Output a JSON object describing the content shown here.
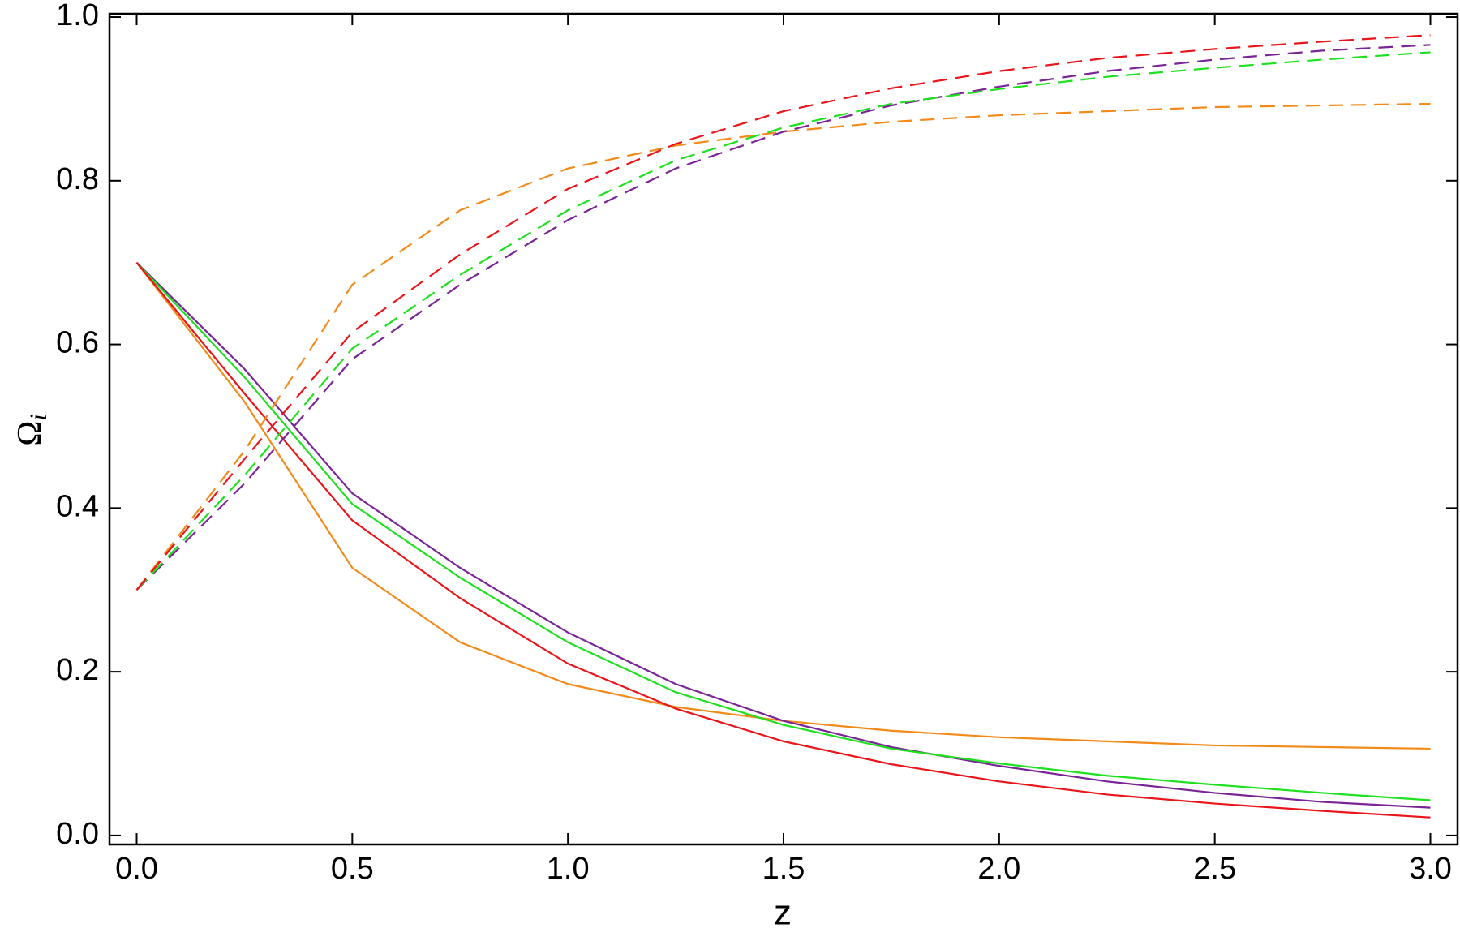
{
  "chart_data": {
    "type": "line",
    "xlabel": "z",
    "ylabel": "Ω",
    "ylabel_subscript": "i",
    "x": [
      0,
      0.25,
      0.5,
      0.75,
      1.0,
      1.25,
      1.5,
      1.75,
      2.0,
      2.25,
      2.5,
      2.75,
      3.0
    ],
    "series": [
      {
        "color": "#f28a1a",
        "dashed": false,
        "values": [
          0.7,
          0.53,
          0.327,
          0.236,
          0.185,
          0.157,
          0.14,
          0.128,
          0.12,
          0.115,
          0.11,
          0.108,
          0.106
        ]
      },
      {
        "color": "#7a2596",
        "dashed": false,
        "values": [
          0.7,
          0.57,
          0.418,
          0.327,
          0.248,
          0.185,
          0.14,
          0.108,
          0.085,
          0.066,
          0.052,
          0.041,
          0.034
        ]
      },
      {
        "color": "#1fe01f",
        "dashed": false,
        "values": [
          0.7,
          0.56,
          0.405,
          0.315,
          0.236,
          0.175,
          0.135,
          0.106,
          0.088,
          0.073,
          0.062,
          0.052,
          0.043
        ]
      },
      {
        "color": "#e8151b",
        "dashed": false,
        "values": [
          0.7,
          0.54,
          0.385,
          0.29,
          0.21,
          0.155,
          0.115,
          0.087,
          0.066,
          0.05,
          0.039,
          0.03,
          0.022
        ]
      },
      {
        "color": "#f28a1a",
        "dashed": true,
        "values": [
          0.3,
          0.47,
          0.673,
          0.764,
          0.815,
          0.843,
          0.86,
          0.872,
          0.88,
          0.885,
          0.89,
          0.892,
          0.894
        ]
      },
      {
        "color": "#7a2596",
        "dashed": true,
        "values": [
          0.3,
          0.43,
          0.582,
          0.673,
          0.752,
          0.815,
          0.86,
          0.892,
          0.915,
          0.934,
          0.948,
          0.959,
          0.966
        ]
      },
      {
        "color": "#1fe01f",
        "dashed": true,
        "values": [
          0.3,
          0.44,
          0.595,
          0.685,
          0.764,
          0.825,
          0.865,
          0.894,
          0.912,
          0.927,
          0.938,
          0.948,
          0.957
        ]
      },
      {
        "color": "#e8151b",
        "dashed": true,
        "values": [
          0.3,
          0.46,
          0.615,
          0.71,
          0.79,
          0.845,
          0.885,
          0.913,
          0.934,
          0.95,
          0.961,
          0.97,
          0.978
        ]
      }
    ],
    "xlim": [
      -0.063,
      3.063
    ],
    "ylim": [
      -0.011,
      1.004
    ],
    "xticks": [
      {
        "value": 0,
        "label": "0.0"
      },
      {
        "value": 0.5,
        "label": "0.5"
      },
      {
        "value": 1,
        "label": "1.0"
      },
      {
        "value": 1.5,
        "label": "1.5"
      },
      {
        "value": 2,
        "label": "2.0"
      },
      {
        "value": 2.5,
        "label": "2.5"
      },
      {
        "value": 3,
        "label": "3.0"
      }
    ],
    "yticks": [
      {
        "value": 0,
        "label": "0.0"
      },
      {
        "value": 0.2,
        "label": "0.2"
      },
      {
        "value": 0.4,
        "label": "0.4"
      },
      {
        "value": 0.6,
        "label": "0.6"
      },
      {
        "value": 0.8,
        "label": "0.8"
      },
      {
        "value": 1,
        "label": "1.0"
      }
    ],
    "grid": false
  }
}
